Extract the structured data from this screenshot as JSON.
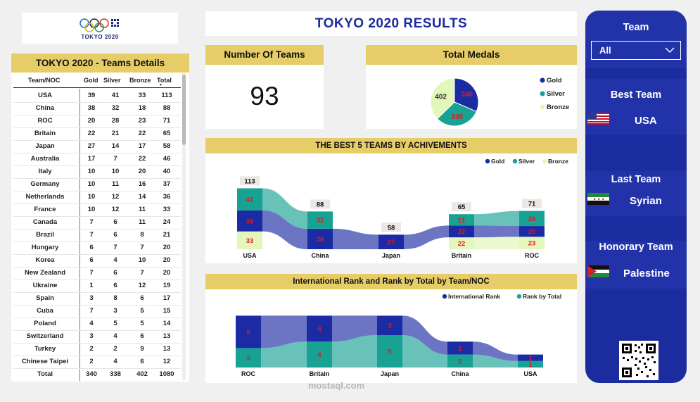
{
  "logo": {
    "text": "TOKYO 2020"
  },
  "banner": {
    "title": "TOKYO 2020 RESULTS"
  },
  "table": {
    "title": "TOKYO 2020 - Teams Details",
    "headers": [
      "Team/NOC",
      "Gold",
      "Silver",
      "Bronze",
      "Total"
    ],
    "sort_indicator": "▼",
    "rows": [
      [
        "USA",
        "39",
        "41",
        "33",
        "113"
      ],
      [
        "China",
        "38",
        "32",
        "18",
        "88"
      ],
      [
        "ROC",
        "20",
        "28",
        "23",
        "71"
      ],
      [
        "Britain",
        "22",
        "21",
        "22",
        "65"
      ],
      [
        "Japan",
        "27",
        "14",
        "17",
        "58"
      ],
      [
        "Australia",
        "17",
        "7",
        "22",
        "46"
      ],
      [
        "Italy",
        "10",
        "10",
        "20",
        "40"
      ],
      [
        "Germany",
        "10",
        "11",
        "16",
        "37"
      ],
      [
        "Netherlands",
        "10",
        "12",
        "14",
        "36"
      ],
      [
        "France",
        "10",
        "12",
        "11",
        "33"
      ],
      [
        "Canada",
        "7",
        "6",
        "11",
        "24"
      ],
      [
        "Brazil",
        "7",
        "6",
        "8",
        "21"
      ],
      [
        "Hungary",
        "6",
        "7",
        "7",
        "20"
      ],
      [
        "Korea",
        "6",
        "4",
        "10",
        "20"
      ],
      [
        "New Zealand",
        "7",
        "6",
        "7",
        "20"
      ],
      [
        "Ukraine",
        "1",
        "6",
        "12",
        "19"
      ],
      [
        "Spain",
        "3",
        "8",
        "6",
        "17"
      ],
      [
        "Cuba",
        "7",
        "3",
        "5",
        "15"
      ],
      [
        "Poland",
        "4",
        "5",
        "5",
        "14"
      ],
      [
        "Switzerland",
        "3",
        "4",
        "6",
        "13"
      ],
      [
        "Turkey",
        "2",
        "2",
        "9",
        "13"
      ],
      [
        "Chinese Taipei",
        "2",
        "4",
        "6",
        "12"
      ],
      [
        "Total",
        "340",
        "338",
        "402",
        "1080"
      ]
    ]
  },
  "number_of_teams": {
    "title": "Number Of Teams",
    "value": "93"
  },
  "colors": {
    "gold": "#1b2ba3",
    "silver": "#17a294",
    "bronze": "#e4f7bb",
    "label_red": "#e01b1b",
    "accent_yellow": "#e6cd67",
    "panel_blue": "#1b2c9f"
  },
  "total_medals": {
    "title": "Total Medals",
    "legend": [
      "Gold",
      "Silver",
      "Bronze"
    ],
    "chart_data": {
      "type": "pie",
      "categories": [
        "Gold",
        "Silver",
        "Bronze"
      ],
      "values": [
        340,
        338,
        402
      ]
    }
  },
  "best5": {
    "title": "THE BEST 5 TEAMS BY ACHIVEMENTS",
    "legend": [
      "Gold",
      "Silver",
      "Bronze"
    ],
    "chart_data": {
      "type": "bar",
      "categories": [
        "USA",
        "China",
        "Japan",
        "Britain",
        "ROC"
      ],
      "totals": [
        113,
        88,
        58,
        65,
        71
      ],
      "series": [
        {
          "name": "Gold",
          "values": [
            39,
            38,
            27,
            22,
            20
          ]
        },
        {
          "name": "Silver",
          "values": [
            41,
            32,
            null,
            21,
            28
          ]
        },
        {
          "name": "Bronze",
          "values": [
            33,
            null,
            null,
            22,
            23
          ]
        }
      ]
    }
  },
  "rank": {
    "title": "International Rank and Rank by Total by Team/NOC",
    "legend": [
      "International Rank",
      "Rank by Total"
    ],
    "chart_data": {
      "type": "bar",
      "categories": [
        "ROC",
        "Britain",
        "Japan",
        "China",
        "USA"
      ],
      "series": [
        {
          "name": "International Rank",
          "values": [
            5,
            4,
            3,
            2,
            1
          ]
        },
        {
          "name": "Rank by Total",
          "values": [
            3,
            4,
            5,
            2,
            1
          ]
        }
      ]
    }
  },
  "panel": {
    "team_label": "Team",
    "team_value": "All",
    "best_team_label": "Best Team",
    "best_team_value": "USA",
    "last_team_label": "Last Team",
    "last_team_value": "Syrian",
    "honorary_team_label": "Honorary Team",
    "honorary_team_value": "Palestine"
  },
  "watermark": "mostaql.com"
}
